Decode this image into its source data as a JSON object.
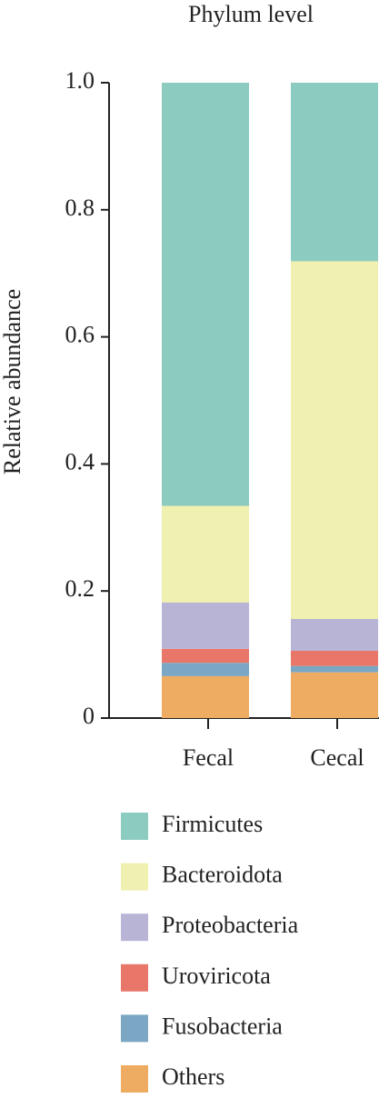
{
  "chart_data": {
    "type": "stacked_bar",
    "title": "Phylum level",
    "y_label": "Relative abundance",
    "categories": [
      "Fecal",
      "Cecal"
    ],
    "series": [
      {
        "name": "Firmicutes",
        "color": "#8ccbbf",
        "values": [
          0.666,
          0.281
        ]
      },
      {
        "name": "Bacteroidota",
        "color": "#f0f0b0",
        "values": [
          0.152,
          0.563
        ]
      },
      {
        "name": "Proteobacteria",
        "color": "#b8b4d6",
        "values": [
          0.073,
          0.05
        ]
      },
      {
        "name": "Uroviricota",
        "color": "#e8776a",
        "values": [
          0.022,
          0.024
        ]
      },
      {
        "name": "Fusobacteria",
        "color": "#7ba7c4",
        "values": [
          0.021,
          0.01
        ]
      },
      {
        "name": "Others",
        "color": "#eeab62",
        "values": [
          0.066,
          0.072
        ]
      }
    ],
    "ylim": [
      0,
      1
    ],
    "yticks": [
      0,
      0.2,
      0.4,
      0.6,
      0.8,
      {
        "value": 1,
        "label": "1.0"
      }
    ]
  }
}
